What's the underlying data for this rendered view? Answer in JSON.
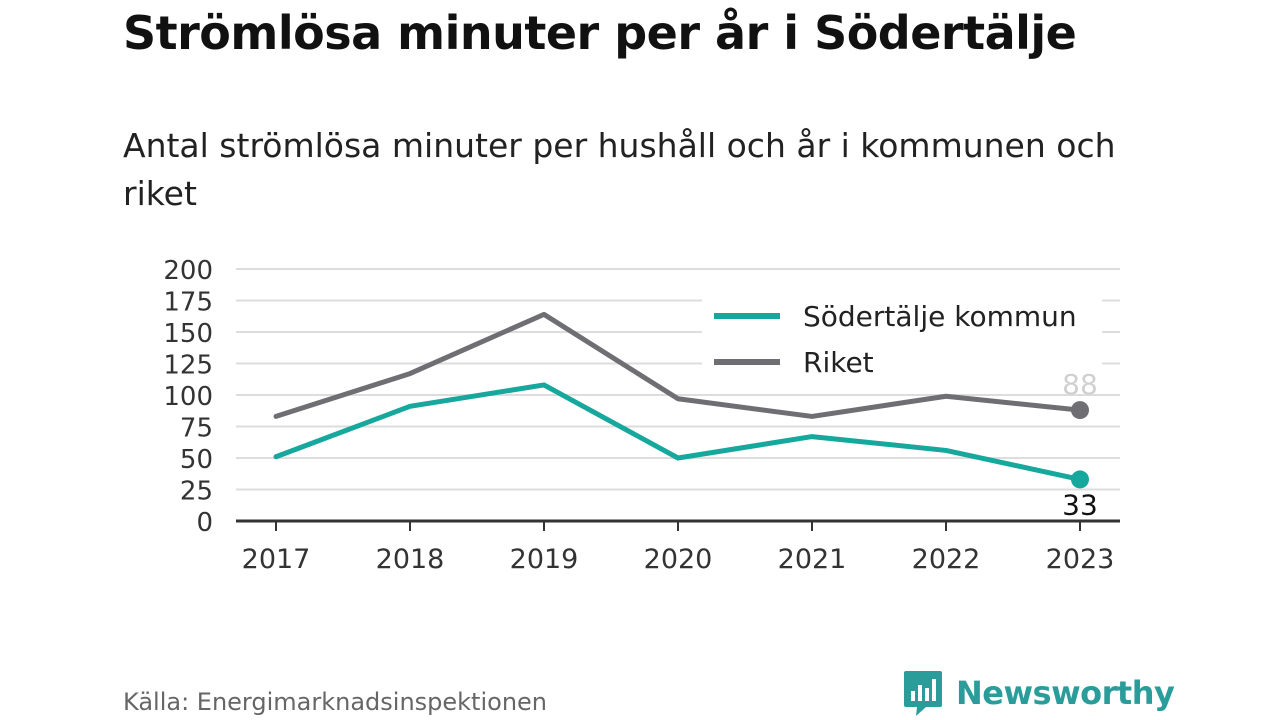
{
  "title": "Strömlösa minuter per år i Södertälje",
  "subtitle": "Antal strömlösa minuter per hushåll och år i kommunen och riket",
  "source": "Källa: Energimarknadsinspektionen",
  "brand": "Newsworthy",
  "colors": {
    "kommun": "#16a79d",
    "riket": "#6f6e73",
    "brand": "#2a9d9a"
  },
  "chart_data": {
    "type": "line",
    "categories": [
      "2017",
      "2018",
      "2019",
      "2020",
      "2021",
      "2022",
      "2023"
    ],
    "ylim": [
      0,
      200
    ],
    "yticks": [
      0,
      25,
      50,
      75,
      100,
      125,
      150,
      175,
      200
    ],
    "grid": true,
    "legend_position": "top-right",
    "series": [
      {
        "name": "Södertälje kommun",
        "color": "#16a79d",
        "values": [
          51,
          91,
          108,
          50,
          67,
          56,
          33
        ],
        "end_label": "33"
      },
      {
        "name": "Riket",
        "color": "#6f6e73",
        "values": [
          83,
          117,
          164,
          97,
          83,
          99,
          88
        ],
        "end_label": "88"
      }
    ]
  }
}
